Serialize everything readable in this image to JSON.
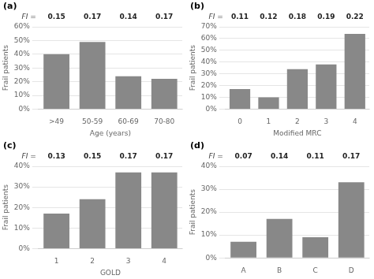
{
  "chart_data": [
    {
      "type": "bar",
      "title": "(a)",
      "fi_label": "FI =",
      "categories": [
        ">49",
        "50-59",
        "60-69",
        "70-80"
      ],
      "values": [
        40,
        49,
        24,
        22
      ],
      "fi_values": [
        "0.15",
        "0.17",
        "0.14",
        "0.17"
      ],
      "color": "#888888",
      "xlabel": "Age (years)",
      "ylabel": "Frail patients",
      "ylim": [
        0,
        60
      ],
      "yticks": [
        {
          "value": 0,
          "label": "0%"
        },
        {
          "value": 10,
          "label": "10%"
        },
        {
          "value": 20,
          "label": "20%"
        },
        {
          "value": 30,
          "label": "30%"
        },
        {
          "value": 40,
          "label": "40%"
        },
        {
          "value": 50,
          "label": "50%"
        },
        {
          "value": 60,
          "label": "60%"
        }
      ],
      "grid": true
    },
    {
      "type": "bar",
      "title": "(b)",
      "fi_label": "FI =",
      "categories": [
        "0",
        "1",
        "2",
        "3",
        "4"
      ],
      "values": [
        17,
        10,
        34,
        38,
        64
      ],
      "fi_values": [
        "0.11",
        "0.12",
        "0.18",
        "0.19",
        "0.22"
      ],
      "color": "#888888",
      "xlabel": "Modified MRC",
      "ylabel": "Frail patients",
      "ylim": [
        0,
        70
      ],
      "yticks": [
        {
          "value": 0,
          "label": "0%"
        },
        {
          "value": 10,
          "label": "10%"
        },
        {
          "value": 20,
          "label": "20%"
        },
        {
          "value": 30,
          "label": "30%"
        },
        {
          "value": 40,
          "label": "40%"
        },
        {
          "value": 50,
          "label": "50%"
        },
        {
          "value": 60,
          "label": "60%"
        },
        {
          "value": 70,
          "label": "70%"
        }
      ],
      "grid": true
    },
    {
      "type": "bar",
      "title": "(c)",
      "fi_label": "FI =",
      "categories": [
        "1",
        "2",
        "3",
        "4"
      ],
      "values": [
        17,
        24,
        37,
        37
      ],
      "fi_values": [
        "0.13",
        "0.15",
        "0.17",
        "0.17"
      ],
      "color": "#888888",
      "xlabel": "GOLD",
      "ylabel": "Frail patients",
      "ylim": [
        0,
        40
      ],
      "yticks": [
        {
          "value": 0,
          "label": "0%"
        },
        {
          "value": 10,
          "label": "10%"
        },
        {
          "value": 20,
          "label": "20%"
        },
        {
          "value": 30,
          "label": "30%"
        },
        {
          "value": 40,
          "label": "40%"
        }
      ],
      "grid": true
    },
    {
      "type": "bar",
      "title": "(d)",
      "fi_label": "FI =",
      "categories": [
        "A",
        "B",
        "C",
        "D"
      ],
      "values": [
        7,
        17,
        9,
        33
      ],
      "fi_values": [
        "0.07",
        "0.14",
        "0.11",
        "0.17"
      ],
      "color": "#888888",
      "ylabel": "Frail patients",
      "ylim": [
        0,
        40
      ],
      "yticks": [
        {
          "value": 0,
          "label": "0%"
        },
        {
          "value": 10,
          "label": "10%"
        },
        {
          "value": 20,
          "label": "20%"
        },
        {
          "value": 30,
          "label": "30%"
        },
        {
          "value": 40,
          "label": "40%"
        }
      ],
      "grid": true
    }
  ]
}
